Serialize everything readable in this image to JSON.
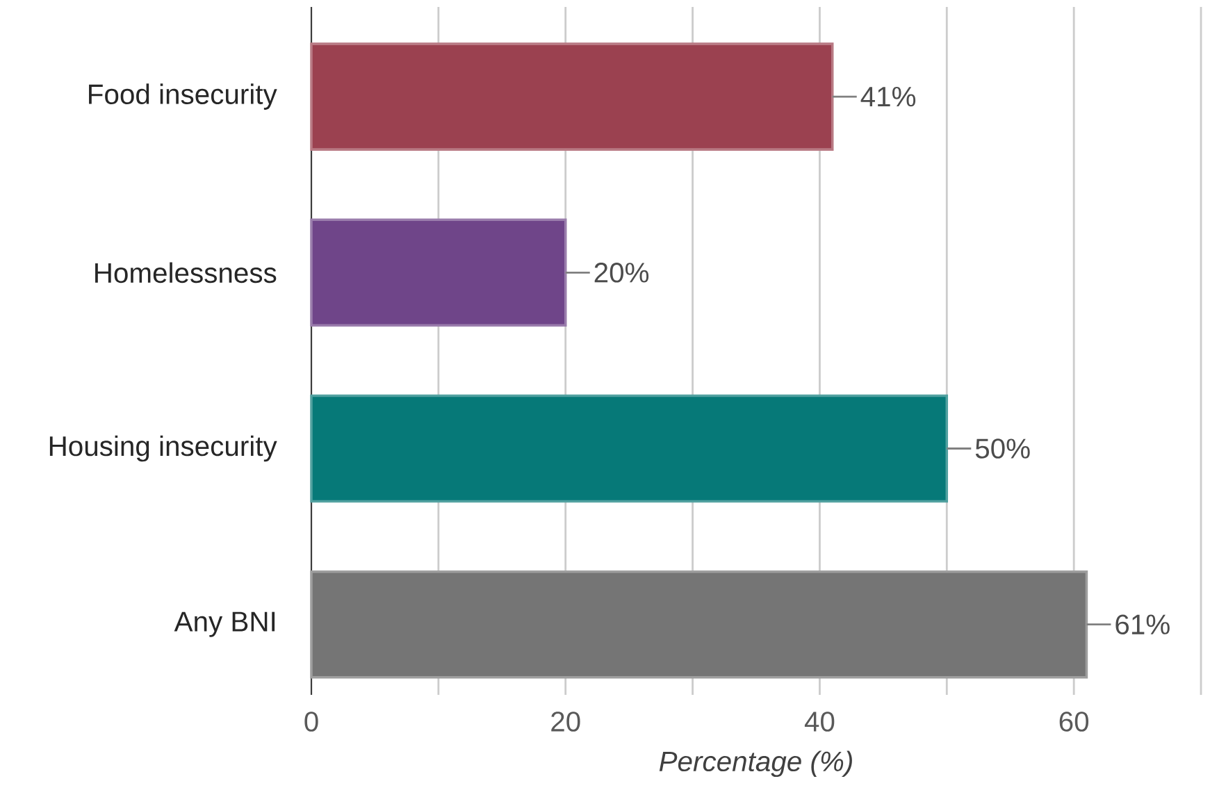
{
  "chart_data": {
    "type": "bar",
    "orientation": "horizontal",
    "xlabel": "Percentage (%)",
    "categories": [
      "Food insecurity",
      "Homelessness",
      "Housing insecurity",
      "Any BNI"
    ],
    "values": [
      41,
      20,
      50,
      61
    ],
    "colors": [
      "#9b4150",
      "#6f4589",
      "#067978",
      "#757575"
    ],
    "value_labels": [
      "41%",
      "20%",
      "50%",
      "61%"
    ],
    "xlim": [
      0,
      70
    ],
    "xticks": [
      0,
      {
        "value": 10,
        "label": null
      },
      20,
      {
        "value": 30,
        "label": null
      },
      40,
      {
        "value": 50,
        "label": null
      },
      60,
      {
        "value": 70,
        "label": null
      }
    ],
    "grid": "x"
  }
}
